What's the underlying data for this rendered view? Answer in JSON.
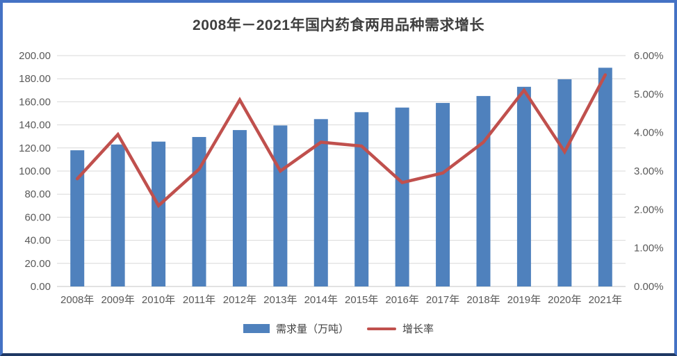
{
  "chart_data": {
    "type": "combo-bar-line",
    "title": "2008年－2021年国内药食两用品种需求增长",
    "categories": [
      "2008年",
      "2009年",
      "2010年",
      "2011年",
      "2012年",
      "2013年",
      "2014年",
      "2015年",
      "2016年",
      "2017年",
      "2018年",
      "2019年",
      "2020年",
      "2021年"
    ],
    "series": [
      {
        "name": "需求量（万吨）",
        "type": "bar",
        "axis": "left",
        "color": "#4f81bd",
        "values": [
          118,
          123,
          125.5,
          129.5,
          135.5,
          139.5,
          145,
          151,
          155,
          159,
          165,
          173,
          179.5,
          189.5
        ]
      },
      {
        "name": "增长率",
        "type": "line",
        "axis": "right",
        "color": "#c0504d",
        "values": [
          2.8,
          3.95,
          2.1,
          3.05,
          4.85,
          3.0,
          3.75,
          3.65,
          2.7,
          2.95,
          3.75,
          5.1,
          3.5,
          5.5
        ]
      }
    ],
    "axes": {
      "left": {
        "min": 0,
        "max": 200,
        "step": 20,
        "tick_labels": [
          "0.00",
          "20.00",
          "40.00",
          "60.00",
          "80.00",
          "100.00",
          "120.00",
          "140.00",
          "160.00",
          "180.00",
          "200.00"
        ]
      },
      "right": {
        "min": 0,
        "max": 6,
        "step": 1,
        "tick_labels": [
          "0.00%",
          "1.00%",
          "2.00%",
          "3.00%",
          "4.00%",
          "5.00%",
          "6.00%"
        ]
      }
    },
    "grid": true,
    "legend_position": "bottom",
    "styles": {
      "gridline_color": "#d9d9d9",
      "axis_text_color": "#595959",
      "title_color": "#3f3f3f",
      "frame_border_color": "#4472c4",
      "bar_color": "#4f81bd",
      "line_color": "#c0504d"
    }
  }
}
